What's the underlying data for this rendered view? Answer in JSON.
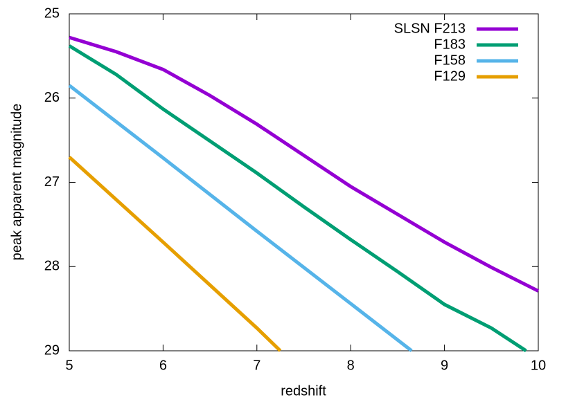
{
  "chart_data": {
    "type": "line",
    "x_label": "redshift",
    "y_label": "peak apparent magnitude",
    "xlim": [
      5,
      10
    ],
    "xticks": [
      5,
      6,
      7,
      8,
      9,
      10
    ],
    "ylim": [
      29,
      25
    ],
    "yticks": [
      25,
      26,
      27,
      28,
      29
    ],
    "legend": "top-right",
    "series": [
      {
        "name": "SLSN F213",
        "color": "#9400d3",
        "x": [
          5,
          5.5,
          6,
          6.5,
          7,
          7.5,
          8,
          8.5,
          9,
          9.5,
          10
        ],
        "values": [
          25.28,
          25.45,
          25.66,
          25.97,
          26.31,
          26.68,
          27.05,
          27.38,
          27.71,
          28.01,
          28.29
        ]
      },
      {
        "name": "F183",
        "color": "#009e73",
        "x": [
          5,
          5.5,
          6,
          6.5,
          7,
          7.5,
          8,
          8.5,
          9,
          9.5,
          9.87
        ],
        "values": [
          25.38,
          25.72,
          26.13,
          26.51,
          26.89,
          27.29,
          27.68,
          28.06,
          28.45,
          28.73,
          29
        ]
      },
      {
        "name": "F158",
        "color": "#56b4e9",
        "x": [
          5,
          5.5,
          6,
          7,
          8,
          8.65
        ],
        "values": [
          25.85,
          26.28,
          26.71,
          27.58,
          28.44,
          29
        ]
      },
      {
        "name": "F129",
        "color": "#e69f00",
        "x": [
          5,
          6,
          7,
          7.25
        ],
        "values": [
          26.7,
          27.71,
          28.73,
          29
        ]
      }
    ]
  }
}
